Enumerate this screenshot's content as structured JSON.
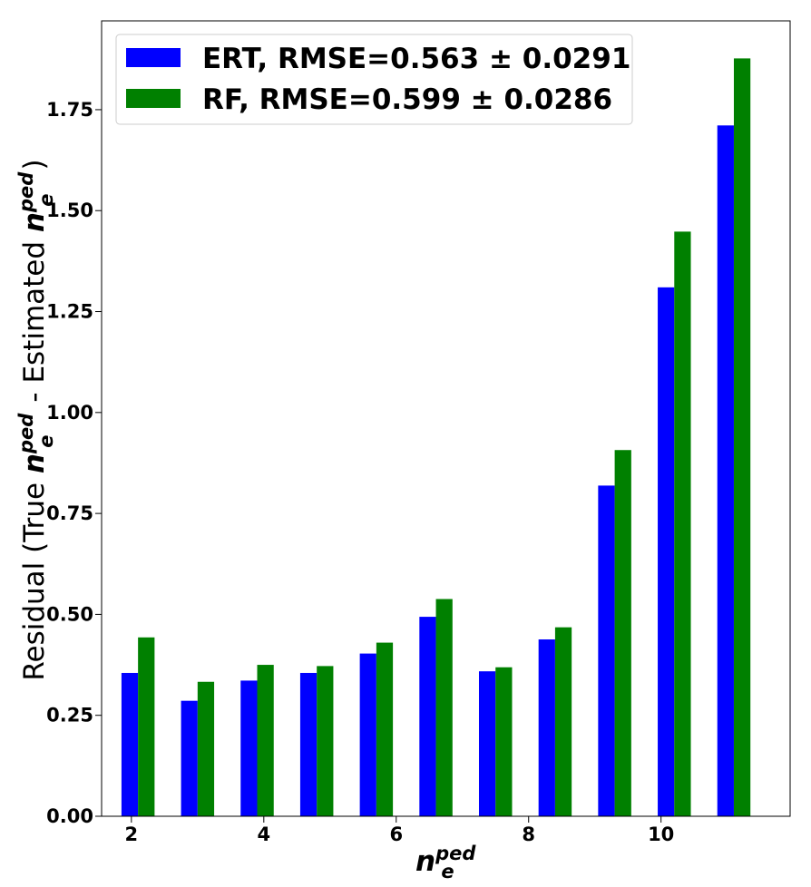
{
  "chart_data": {
    "type": "bar",
    "x": [
      2.1,
      3.0,
      3.9,
      4.8,
      5.7,
      6.6,
      7.5,
      8.4,
      9.3,
      10.2,
      11.1
    ],
    "series": [
      {
        "name": "ERT, RMSE=0.563 ± 0.0291",
        "color": "#0000ff",
        "values": [
          0.355,
          0.286,
          0.336,
          0.355,
          0.403,
          0.494,
          0.359,
          0.438,
          0.819,
          1.31,
          1.711
        ]
      },
      {
        "name": "RF, RMSE=0.599 ± 0.0286",
        "color": "#008000",
        "values": [
          0.443,
          0.333,
          0.375,
          0.372,
          0.43,
          0.538,
          0.369,
          0.468,
          0.907,
          1.448,
          1.877
        ]
      }
    ],
    "xlim": [
      1.55,
      11.95
    ],
    "ylim": [
      0,
      1.97
    ],
    "xticks": [
      2,
      4,
      6,
      8,
      10
    ],
    "yticks": [
      0.0,
      0.25,
      0.5,
      0.75,
      1.0,
      1.25,
      1.5,
      1.75
    ],
    "xtick_labels": [
      "2",
      "4",
      "6",
      "8",
      "10"
    ],
    "ytick_labels": [
      "0.00",
      "0.25",
      "0.50",
      "0.75",
      "1.00",
      "1.25",
      "1.50",
      "1.75"
    ],
    "xlabel": {
      "base": "n",
      "sub": "e",
      "sup": "ped"
    },
    "ylabel": {
      "prefix": "Residual (True ",
      "middle": " - Estimated ",
      "suffix": ")",
      "base": "n",
      "sub": "e",
      "sup": "ped"
    },
    "legend_position": "top-left",
    "grid": false
  }
}
